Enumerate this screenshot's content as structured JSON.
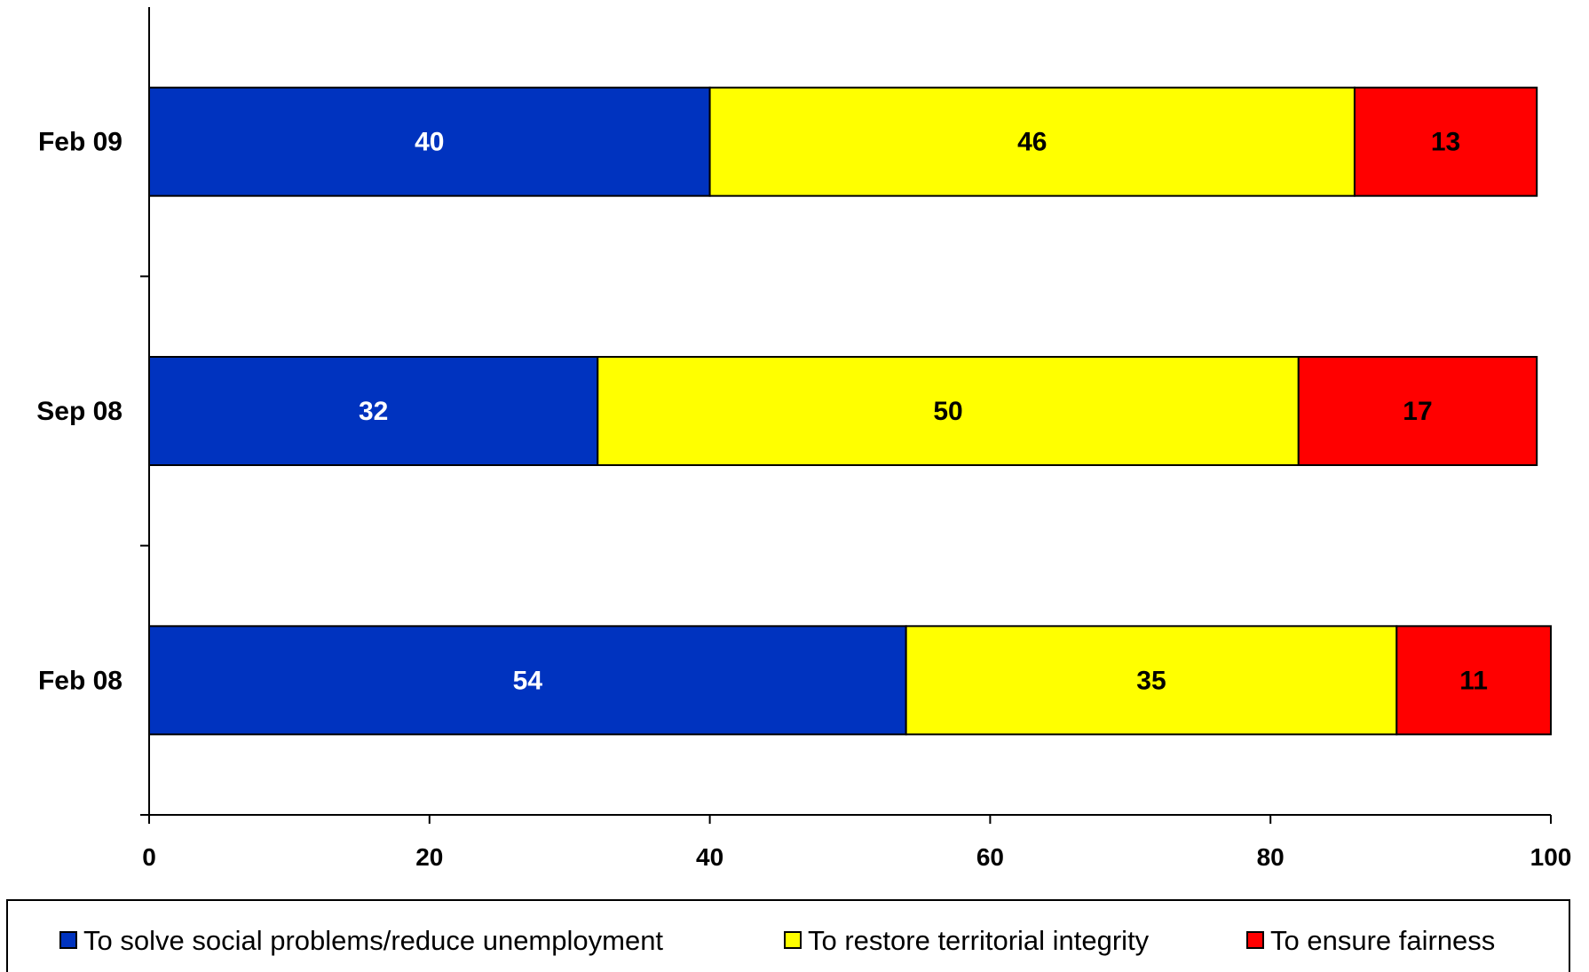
{
  "chart_data": {
    "type": "bar",
    "orientation": "horizontal",
    "stacked": true,
    "categories": [
      "Feb 09",
      "Sep 08",
      "Feb 08"
    ],
    "series": [
      {
        "name": "To solve social problems/reduce unemployment",
        "values": [
          40,
          32,
          54
        ],
        "color": "#0033bf",
        "label_color": "#ffffff"
      },
      {
        "name": "To restore territorial integrity",
        "values": [
          46,
          50,
          35
        ],
        "color": "#ffff00",
        "label_color": "#000000"
      },
      {
        "name": "To ensure fairness",
        "values": [
          13,
          17,
          11
        ],
        "color": "#ff0000",
        "label_color": "#000000"
      }
    ],
    "xlim": [
      0,
      100
    ],
    "xticks": [
      "0",
      "20",
      "40",
      "60",
      "80",
      "100"
    ],
    "title": "",
    "xlabel": "",
    "ylabel": "",
    "grid": false,
    "legend_position": "bottom"
  }
}
